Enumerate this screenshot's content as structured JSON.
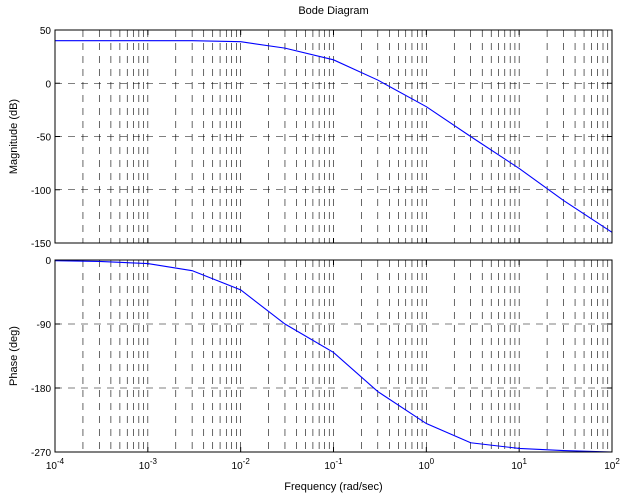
{
  "chart_data": [
    {
      "type": "line",
      "title": "Bode Diagram",
      "ylabel": "Magnitude (dB)",
      "xlabel": "",
      "xscale": "log",
      "xlim": [
        0.0001,
        100
      ],
      "ylim": [
        -150,
        50
      ],
      "grid": true,
      "line_color": "#0000ff",
      "xticks": [
        {
          "value": 0.0001,
          "base": "10",
          "exp": "-4"
        },
        {
          "value": 0.001,
          "base": "10",
          "exp": "-3"
        },
        {
          "value": 0.01,
          "base": "10",
          "exp": "-2"
        },
        {
          "value": 0.1,
          "base": "10",
          "exp": "-1"
        },
        {
          "value": 1,
          "base": "10",
          "exp": "0"
        },
        {
          "value": 10,
          "base": "10",
          "exp": "1"
        },
        {
          "value": 100,
          "base": "10",
          "exp": "2"
        }
      ],
      "yticks": [
        50,
        0,
        -50,
        -100,
        -150
      ],
      "yticklabels": [
        "50",
        "0",
        "-50",
        "-100",
        "-150"
      ],
      "series": [
        {
          "x": [
            0.0001,
            0.0003,
            0.001,
            0.003,
            0.01,
            0.03,
            0.1,
            0.3,
            1,
            3,
            10,
            30,
            100
          ],
          "y": [
            40,
            40,
            40,
            40,
            39,
            33,
            22,
            3,
            -22,
            -50,
            -80,
            -110,
            -140
          ]
        }
      ]
    },
    {
      "type": "line",
      "title": "",
      "ylabel": "Phase (deg)",
      "xlabel": "Frequency  (rad/sec)",
      "xscale": "log",
      "xlim": [
        0.0001,
        100
      ],
      "ylim": [
        -270,
        0
      ],
      "grid": true,
      "line_color": "#0000ff",
      "xticks": [
        {
          "value": 0.0001,
          "base": "10",
          "exp": "-4"
        },
        {
          "value": 0.001,
          "base": "10",
          "exp": "-3"
        },
        {
          "value": 0.01,
          "base": "10",
          "exp": "-2"
        },
        {
          "value": 0.1,
          "base": "10",
          "exp": "-1"
        },
        {
          "value": 1,
          "base": "10",
          "exp": "0"
        },
        {
          "value": 10,
          "base": "10",
          "exp": "1"
        },
        {
          "value": 100,
          "base": "10",
          "exp": "2"
        }
      ],
      "yticks": [
        0,
        -90,
        -180,
        -270
      ],
      "yticklabels": [
        "0",
        "-90",
        "-180",
        "-270"
      ],
      "series": [
        {
          "x": [
            0.0001,
            0.0003,
            0.001,
            0.003,
            0.01,
            0.03,
            0.1,
            0.3,
            1,
            3,
            10,
            30,
            100
          ],
          "y": [
            -1,
            -2,
            -5,
            -15,
            -42,
            -90,
            -130,
            -185,
            -230,
            -257,
            -265,
            -268,
            -270
          ]
        }
      ]
    }
  ]
}
